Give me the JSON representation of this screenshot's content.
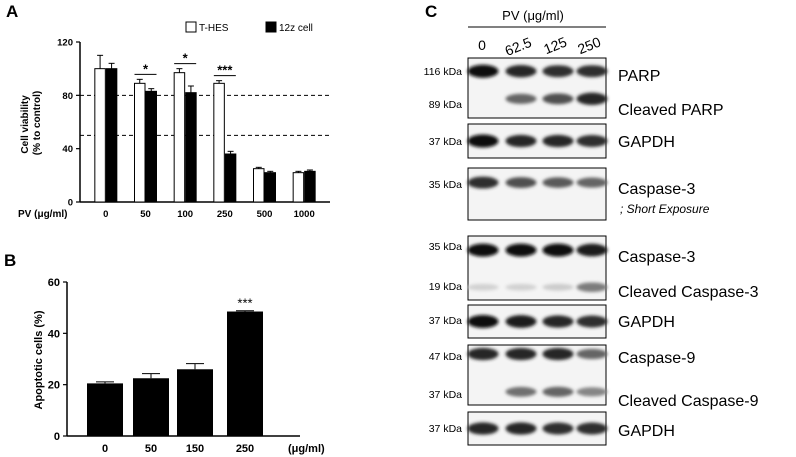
{
  "panels": {
    "a": "A",
    "b": "B",
    "c": "C"
  },
  "chart_data": [
    {
      "type": "bar",
      "panel": "A",
      "ylabel": "Cell viability\n(% to control)",
      "xlabel": "PV (μg/ml)",
      "categories": [
        "0",
        "50",
        "100",
        "250",
        "500",
        "1000"
      ],
      "ylim": [
        0,
        120
      ],
      "yticks": [
        0,
        40,
        80,
        120
      ],
      "reference_lines": [
        50,
        80
      ],
      "series": [
        {
          "name": "T-HES",
          "values": [
            100,
            89,
            97,
            89,
            25,
            22
          ],
          "errors": [
            10,
            3,
            3,
            2,
            1,
            1
          ],
          "color": "#ffffff"
        },
        {
          "name": "12z cell",
          "values": [
            100,
            83,
            82,
            36,
            22,
            23
          ],
          "errors": [
            4,
            2,
            5,
            2,
            1,
            1
          ],
          "color": "#000000"
        }
      ],
      "significance": [
        {
          "category": "50",
          "label": "*"
        },
        {
          "category": "100",
          "label": "*"
        },
        {
          "category": "250",
          "label": "***"
        }
      ]
    },
    {
      "type": "bar",
      "panel": "B",
      "ylabel": "Apoptotic cells (%)",
      "xlabel": "(μg/ml)",
      "categories": [
        "0",
        "50",
        "150",
        "250"
      ],
      "ylim": [
        0,
        60
      ],
      "yticks": [
        0,
        20,
        40,
        60
      ],
      "series": [
        {
          "name": "",
          "values": [
            20.5,
            22.5,
            26,
            48.5
          ],
          "errors": [
            0.6,
            1.8,
            2.2,
            0.3
          ],
          "color": "#000000"
        }
      ],
      "significance": [
        {
          "category": "250",
          "label": "***"
        }
      ]
    }
  ],
  "blot": {
    "header": "PV (μg/ml)",
    "lanes": [
      "0",
      "62.5",
      "125",
      "250"
    ],
    "boxes": [
      {
        "kda": [
          "116 kDa",
          "89 kDa"
        ],
        "labels": [
          "PARP",
          "Cleaved PARP"
        ],
        "bands": [
          {
            "level": 0.22,
            "intensity": [
              1,
              0.9,
              0.85,
              0.85
            ]
          },
          {
            "level": 0.68,
            "intensity": [
              0,
              0.6,
              0.7,
              0.9
            ]
          }
        ]
      },
      {
        "kda": [
          "37 kDa"
        ],
        "labels": [
          "GAPDH"
        ],
        "bands": [
          {
            "level": 0.5,
            "intensity": [
              1,
              0.9,
              0.9,
              0.85
            ]
          }
        ]
      },
      {
        "kda": [
          "35 kDa"
        ],
        "labels": [
          "Caspase-3"
        ],
        "note": "; Short Exposure",
        "bands": [
          {
            "level": 0.28,
            "intensity": [
              0.85,
              0.7,
              0.65,
              0.6
            ]
          }
        ]
      },
      {
        "kda": [
          "35 kDa",
          "19 kDa"
        ],
        "labels": [
          "Caspase-3",
          "Cleaved Caspase-3"
        ],
        "bands": [
          {
            "level": 0.22,
            "intensity": [
              1,
              1,
              1,
              0.95
            ]
          },
          {
            "level": 0.8,
            "intensity": [
              0.1,
              0.1,
              0.12,
              0.5
            ]
          }
        ]
      },
      {
        "kda": [
          "37 kDa"
        ],
        "labels": [
          "GAPDH"
        ],
        "bands": [
          {
            "level": 0.5,
            "intensity": [
              1,
              0.95,
              0.9,
              0.85
            ]
          }
        ]
      },
      {
        "kda": [
          "47 kDa",
          "37 kDa"
        ],
        "labels": [
          "Caspase-9",
          "Cleaved Caspase-9"
        ],
        "bands": [
          {
            "level": 0.15,
            "intensity": [
              0.9,
              0.9,
              0.9,
              0.6
            ]
          },
          {
            "level": 0.78,
            "intensity": [
              0,
              0.55,
              0.6,
              0.45
            ]
          }
        ]
      },
      {
        "kda": [
          "37 kDa"
        ],
        "labels": [
          "GAPDH"
        ],
        "bands": [
          {
            "level": 0.5,
            "intensity": [
              0.9,
              0.9,
              0.85,
              0.85
            ]
          }
        ]
      }
    ]
  }
}
